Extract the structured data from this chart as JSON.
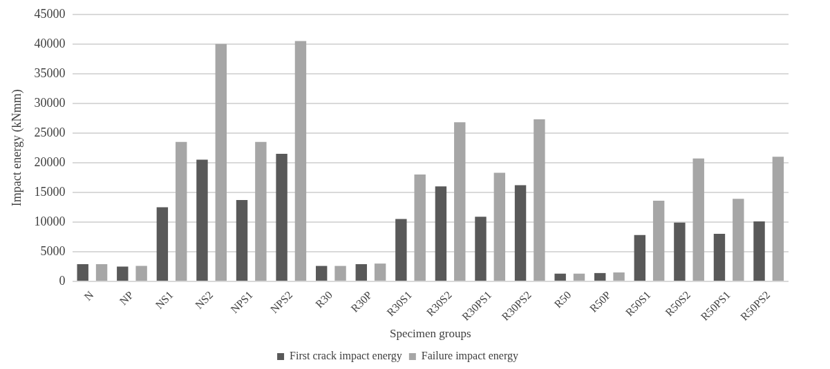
{
  "chart_data": {
    "type": "bar",
    "xlabel": "Specimen groups",
    "ylabel": "Impact energy (kNmm)",
    "categories": [
      "N",
      "NP",
      "NS1",
      "NS2",
      "NPS1",
      "NPS2",
      "R30",
      "R30P",
      "R30S1",
      "R30S2",
      "R30PS1",
      "R30PS2",
      "R50",
      "R50P",
      "R50S1",
      "R50S2",
      "R50PS1",
      "R50PS2"
    ],
    "series": [
      {
        "name": "First crack impact energy",
        "color": "#595959",
        "values": [
          2900,
          2500,
          12500,
          20500,
          13700,
          21500,
          2600,
          2900,
          10500,
          16000,
          10900,
          16200,
          1300,
          1400,
          7800,
          9900,
          8000,
          10100
        ]
      },
      {
        "name": "Failure impact energy",
        "color": "#a6a6a6",
        "values": [
          2900,
          2600,
          23500,
          40000,
          23500,
          40500,
          2600,
          3000,
          18000,
          26800,
          18300,
          27300,
          1300,
          1500,
          13600,
          20700,
          13900,
          21000
        ]
      }
    ],
    "ylim": [
      0,
      45000
    ],
    "yticks": [
      0,
      5000,
      10000,
      15000,
      20000,
      25000,
      30000,
      35000,
      40000,
      45000
    ],
    "grid": "y",
    "legend": "bottom"
  }
}
